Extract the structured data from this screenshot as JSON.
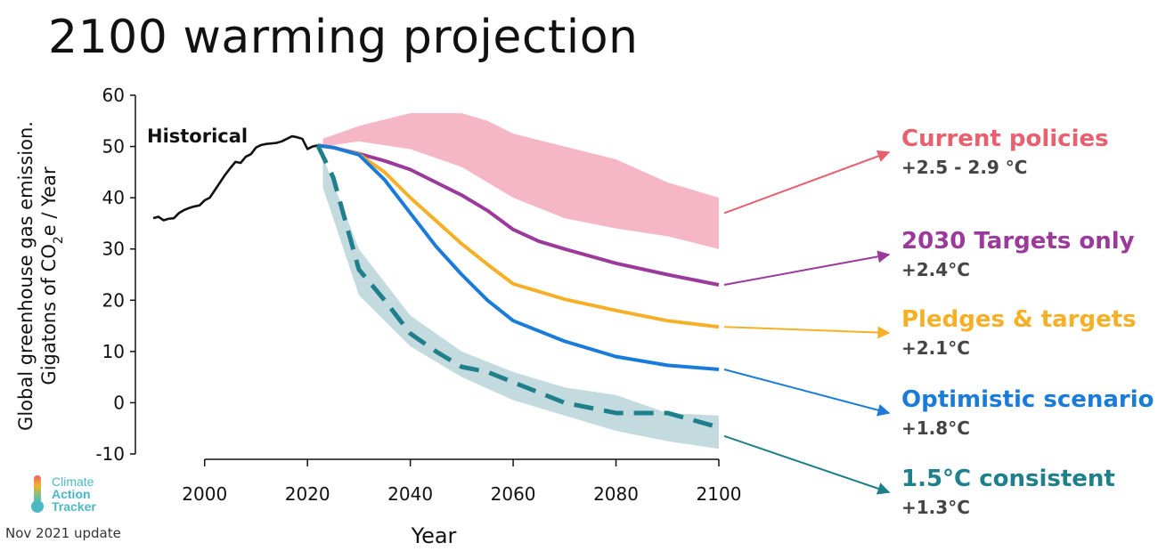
{
  "title": "2100 warming projection",
  "logo": {
    "lines": [
      "Climate",
      "Action",
      "Tracker"
    ],
    "icon": "thermometer-icon"
  },
  "update_note": "Nov 2021 update",
  "chart_data": {
    "type": "line",
    "title": "2100 warming projection",
    "xlabel": "Year",
    "ylabel_line1": "Global greenhouse gas emission.",
    "ylabel_line2_prefix": "Gigatons of CO",
    "ylabel_sub": "2",
    "ylabel_line2_suffix": "e / Year",
    "xlim": [
      1990,
      2100
    ],
    "ylim": [
      -10,
      60
    ],
    "xticks": [
      2000,
      2020,
      2040,
      2060,
      2080,
      2100
    ],
    "yticks": [
      60,
      50,
      40,
      30,
      20,
      10,
      0,
      -10
    ],
    "grid": false,
    "historical": {
      "name": "Historical",
      "color": "#111111",
      "x": [
        1990,
        1991,
        1992,
        1993,
        1994,
        1995,
        1996,
        1997,
        1998,
        1999,
        2000,
        2001,
        2002,
        2003,
        2004,
        2005,
        2006,
        2007,
        2008,
        2009,
        2010,
        2011,
        2012,
        2013,
        2014,
        2015,
        2016,
        2017,
        2018,
        2019,
        2020,
        2021,
        2022
      ],
      "y": [
        36,
        36.3,
        35.6,
        35.9,
        36,
        37,
        37.6,
        38,
        38.3,
        38.5,
        39.5,
        40,
        41.5,
        43,
        44.5,
        45.8,
        47,
        46.8,
        48,
        48.5,
        49.8,
        50.3,
        50.5,
        50.6,
        50.7,
        51,
        51.5,
        52,
        51.8,
        51.5,
        49.5,
        50,
        50.2
      ]
    },
    "bands": [
      {
        "name": "Current policies",
        "color": "#f3a9bc",
        "x": [
          2023,
          2030,
          2040,
          2050,
          2055,
          2060,
          2070,
          2080,
          2090,
          2100
        ],
        "upper": [
          51.5,
          54,
          56.5,
          56.5,
          55,
          52.5,
          50,
          47.5,
          43,
          40
        ],
        "lower": [
          50,
          51,
          49.5,
          46,
          43,
          40,
          36,
          34,
          32.5,
          30
        ]
      },
      {
        "name": "1.5°C consistent",
        "color": "#b8d3d9",
        "x": [
          2023,
          2030,
          2040,
          2050,
          2060,
          2070,
          2080,
          2090,
          2100
        ],
        "upper": [
          48,
          30,
          17,
          10,
          6,
          3,
          1.5,
          -2,
          -2.5
        ],
        "lower": [
          42,
          21,
          11,
          5,
          0.5,
          -2.5,
          -5.5,
          -7.5,
          -9
        ]
      }
    ],
    "series": [
      {
        "name": "2030 Targets only",
        "color": "#9b3a9b",
        "x": [
          2022,
          2025,
          2030,
          2035,
          2040,
          2045,
          2050,
          2055,
          2060,
          2065,
          2070,
          2080,
          2090,
          2100
        ],
        "y": [
          50.2,
          49.8,
          48.6,
          47.2,
          45.5,
          43,
          40.5,
          37.5,
          33.8,
          31.5,
          30,
          27.2,
          25,
          23
        ]
      },
      {
        "name": "Pledges & targets",
        "color": "#f6b027",
        "x": [
          2022,
          2025,
          2030,
          2035,
          2040,
          2045,
          2050,
          2055,
          2060,
          2070,
          2080,
          2090,
          2100
        ],
        "y": [
          50.2,
          49.8,
          48.5,
          45,
          40,
          35.5,
          31,
          27,
          23.2,
          20.2,
          18,
          16,
          14.8
        ]
      },
      {
        "name": "Optimistic scenario",
        "color": "#1a7cd8",
        "x": [
          2022,
          2025,
          2030,
          2035,
          2040,
          2045,
          2050,
          2055,
          2060,
          2070,
          2080,
          2090,
          2100
        ],
        "y": [
          50.2,
          49.8,
          48.4,
          43.5,
          37,
          30.5,
          25,
          20,
          16,
          12,
          9,
          7.3,
          6.5
        ]
      },
      {
        "name": "1.5°C consistent",
        "color": "#1f7f8a",
        "dashed": true,
        "x": [
          2022,
          2025,
          2030,
          2035,
          2040,
          2045,
          2050,
          2055,
          2060,
          2065,
          2070,
          2080,
          2090,
          2100
        ],
        "y": [
          50.2,
          44,
          26,
          20,
          13.5,
          10,
          7,
          6,
          4,
          2,
          0,
          -2,
          -2,
          -4.8
        ]
      }
    ],
    "annotations": [
      {
        "label": "Current policies",
        "value": "+2.5 - 2.9 °C",
        "color": "#e8606e",
        "from": [
          2100,
          37
        ]
      },
      {
        "label": "2030 Targets only",
        "value": "+2.4°C",
        "color": "#9b3a9b",
        "from": [
          2100,
          23
        ]
      },
      {
        "label": "Pledges & targets",
        "value": "+2.1°C",
        "color": "#f6b027",
        "from": [
          2100,
          14.8
        ]
      },
      {
        "label": "Optimistic scenario",
        "value": "+1.8°C",
        "color": "#1a7cd8",
        "from": [
          2100,
          6.5
        ]
      },
      {
        "label": "1.5°C consistent",
        "value": "+1.3°C",
        "color": "#1f7f8a",
        "from": [
          2100,
          -6.5
        ]
      }
    ]
  }
}
